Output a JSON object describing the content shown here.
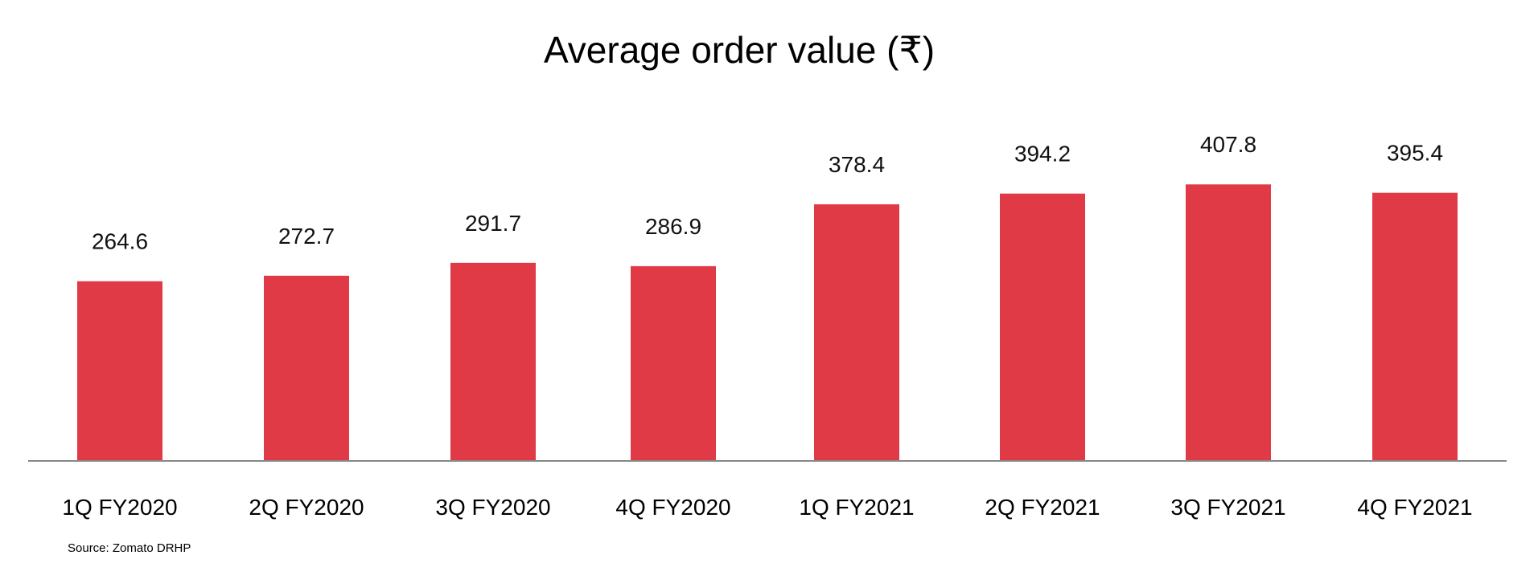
{
  "chart_data": {
    "type": "bar",
    "title": "Average order value (₹)",
    "categories": [
      "1Q FY2020",
      "2Q FY2020",
      "3Q FY2020",
      "4Q FY2020",
      "1Q FY2021",
      "2Q FY2021",
      "3Q FY2021",
      "4Q FY2021"
    ],
    "values": [
      264.6,
      272.7,
      291.7,
      286.9,
      378.4,
      394.2,
      407.8,
      395.4
    ],
    "value_labels": [
      "264.6",
      "272.7",
      "291.7",
      "286.9",
      "378.4",
      "394.2",
      "407.8",
      "395.4"
    ],
    "xlabel": "",
    "ylabel": "",
    "ylim": [
      0,
      450
    ],
    "grid": false,
    "legend": "none",
    "bar_color": "#e03a47",
    "axis_color": "#888888"
  },
  "source": "Source: Zomato DRHP"
}
